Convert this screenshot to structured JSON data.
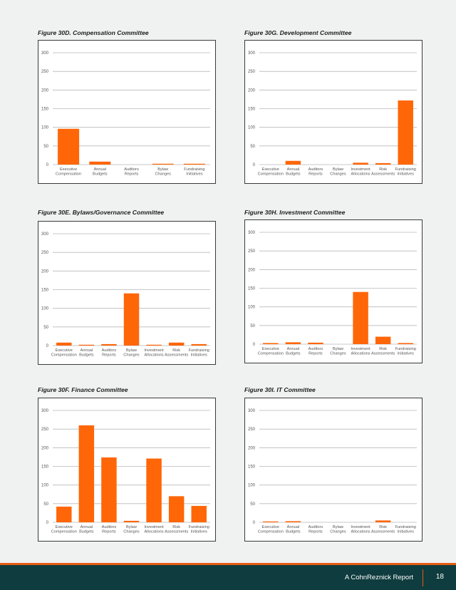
{
  "colors": {
    "bar": "#ff6608",
    "grid": "#b9b9b9",
    "footer_bg": "#0f3c3e",
    "footer_accent": "#e65c12"
  },
  "chart_data": [
    {
      "id": "d",
      "type": "bar",
      "title": "Figure 30D. Compensation Committee",
      "categories": [
        [
          "Executive",
          "Compensation"
        ],
        [
          "Annual",
          "Budgets"
        ],
        [
          "Auditors",
          "Reports"
        ],
        [
          "Bylaw",
          "Changes"
        ],
        [
          "Fundraising",
          "Initiatives"
        ]
      ],
      "values": [
        96,
        8,
        0,
        1,
        1
      ],
      "ylim": [
        0,
        300
      ],
      "yticks": [
        0,
        50,
        100,
        150,
        200,
        250,
        300
      ],
      "grid": true
    },
    {
      "id": "g",
      "type": "bar",
      "title": "Figure 30G. Development Committee",
      "categories": [
        [
          "Executive",
          "Compensation"
        ],
        [
          "Annual",
          "Budgets"
        ],
        [
          "Auditors",
          "Reports"
        ],
        [
          "Bylaw",
          "Changes"
        ],
        [
          "Investment",
          "Allocations"
        ],
        [
          "Risk",
          "Assessments"
        ],
        [
          "Fundraising",
          "Initiatives"
        ]
      ],
      "values": [
        0,
        10,
        0,
        0,
        5,
        4,
        172
      ],
      "ylim": [
        0,
        300
      ],
      "yticks": [
        0,
        50,
        100,
        150,
        200,
        250,
        300
      ],
      "grid": true
    },
    {
      "id": "e",
      "type": "bar",
      "title": "Figure 30E. Bylaws/Governance Committee",
      "categories": [
        [
          "Executive",
          "Compensation"
        ],
        [
          "Annual",
          "Budgets"
        ],
        [
          "Auditors",
          "Reports"
        ],
        [
          "Bylaw",
          "Changes"
        ],
        [
          "Investment",
          "Allocations"
        ],
        [
          "Risk",
          "Assessments"
        ],
        [
          "Fundraising",
          "Initiatives"
        ]
      ],
      "values": [
        8,
        1,
        4,
        140,
        2,
        8,
        4
      ],
      "ylim": [
        0,
        300
      ],
      "yticks": [
        0,
        50,
        100,
        150,
        200,
        250,
        300
      ],
      "grid": true
    },
    {
      "id": "h",
      "type": "bar",
      "title": "Figure 30H. Investment Committee",
      "categories": [
        [
          "Executive",
          "Compensation"
        ],
        [
          "Annual",
          "Budgets"
        ],
        [
          "Auditors",
          "Reports"
        ],
        [
          "Bylaw",
          "Changes"
        ],
        [
          "Investment",
          "Allocations"
        ],
        [
          "Risk",
          "Assessments"
        ],
        [
          "Fundraising",
          "Initiatives"
        ]
      ],
      "values": [
        3,
        5,
        4,
        0,
        140,
        20,
        3
      ],
      "ylim": [
        0,
        300
      ],
      "yticks": [
        0,
        50,
        100,
        150,
        200,
        250,
        300
      ],
      "grid": true
    },
    {
      "id": "f",
      "type": "bar",
      "title": "Figure 30F. Finance Committee",
      "categories": [
        [
          "Executive",
          "Compensation"
        ],
        [
          "Annual",
          "Budgets"
        ],
        [
          "Auditors",
          "Reports"
        ],
        [
          "Bylaw",
          "Changes"
        ],
        [
          "Investment",
          "Allocations"
        ],
        [
          "Risk",
          "Assessments"
        ],
        [
          "Fundraising",
          "Initiatives"
        ]
      ],
      "values": [
        42,
        260,
        174,
        4,
        171,
        70,
        44
      ],
      "ylim": [
        0,
        300
      ],
      "yticks": [
        0,
        50,
        100,
        150,
        200,
        250,
        300
      ],
      "grid": true
    },
    {
      "id": "i",
      "type": "bar",
      "title": "Figure 30I. IT Committee",
      "categories": [
        [
          "Executive",
          "Compensation"
        ],
        [
          "Annual",
          "Budgets"
        ],
        [
          "Auditors",
          "Reports"
        ],
        [
          "Bylaw",
          "Changes"
        ],
        [
          "Investment",
          "Allocations"
        ],
        [
          "Risk",
          "Assessments"
        ],
        [
          "Fundraising",
          "Initiatives"
        ]
      ],
      "values": [
        1,
        3,
        0,
        0,
        0,
        5,
        0
      ],
      "ylim": [
        0,
        300
      ],
      "yticks": [
        0,
        50,
        100,
        150,
        200,
        250,
        300
      ],
      "grid": true
    }
  ],
  "footer": {
    "report": "A CohnReznick Report",
    "page": "18"
  }
}
